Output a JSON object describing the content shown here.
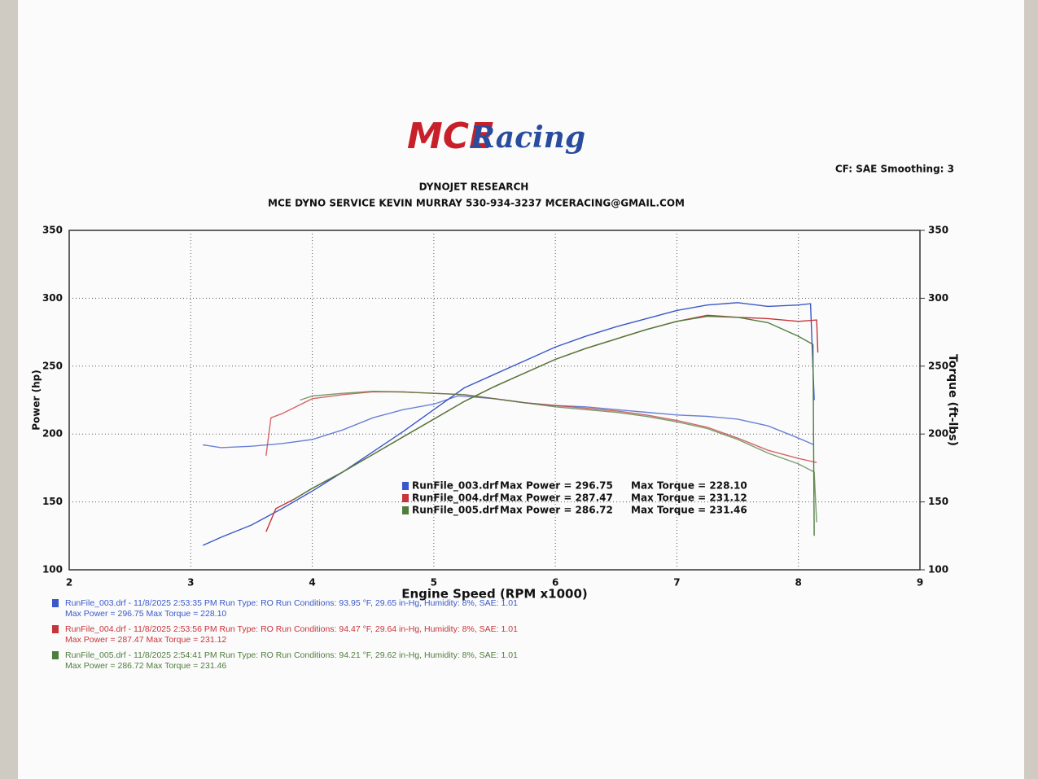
{
  "header": {
    "logo_main": "MCE",
    "logo_script": "Racing",
    "settings": "CF: SAE  Smoothing: 3",
    "company": "DYNOJET RESEARCH",
    "contact": "MCE DYNO SERVICE KEVIN MURRAY 530-934-3237 MCERACING@GMAIL.COM"
  },
  "chart_data": {
    "type": "line",
    "xlabel": "Engine Speed (RPM x1000)",
    "ylabel": "Power (hp)",
    "y2label": "Torque (ft-lbs)",
    "xlim": [
      2,
      9
    ],
    "xticks": [
      2,
      3,
      4,
      5,
      6,
      7,
      8,
      9
    ],
    "ylim": [
      100,
      350
    ],
    "yticks": [
      100,
      150,
      200,
      250,
      300,
      350
    ],
    "y2lim": [
      100,
      350
    ],
    "y2ticks": [
      100,
      150,
      200,
      250,
      300,
      350
    ],
    "grid": true,
    "series": [
      {
        "name": "RunFile_003.drf",
        "color": "#3a58c8",
        "legend": [
          "Max Power = 296.75",
          "Max Torque = 228.10"
        ],
        "power": {
          "x": [
            3.1,
            3.25,
            3.5,
            3.75,
            4,
            4.25,
            4.5,
            4.75,
            5,
            5.25,
            5.5,
            5.75,
            6,
            6.25,
            6.5,
            6.75,
            7,
            7.25,
            7.5,
            7.75,
            8,
            8.1,
            8.13
          ],
          "values": [
            118,
            124,
            133,
            145,
            158,
            172,
            187,
            202,
            218,
            234,
            244,
            254,
            264,
            272,
            279,
            285,
            291,
            295,
            296.75,
            294,
            295,
            296,
            225
          ]
        },
        "torque": {
          "x": [
            3.1,
            3.25,
            3.5,
            3.75,
            4,
            4.25,
            4.5,
            4.75,
            5,
            5.2,
            5.5,
            5.75,
            6,
            6.25,
            6.5,
            6.75,
            7,
            7.25,
            7.5,
            7.75,
            8,
            8.13
          ],
          "values": [
            192,
            190,
            191,
            193,
            196,
            203,
            212,
            218,
            222,
            228.1,
            226,
            223,
            221,
            220,
            218,
            216,
            214,
            213,
            211,
            206,
            197,
            192
          ],
          "axis": "y2"
        }
      },
      {
        "name": "RunFile_004.drf",
        "color": "#c8343a",
        "legend": [
          "Max Power = 287.47",
          "Max Torque = 231.12"
        ],
        "power": {
          "x": [
            3.62,
            3.7,
            3.85,
            4,
            4.25,
            4.5,
            4.75,
            5,
            5.25,
            5.5,
            5.75,
            6,
            6.25,
            6.5,
            6.75,
            7,
            7.25,
            7.5,
            7.75,
            8,
            8.15,
            8.16
          ],
          "values": [
            128,
            145,
            152,
            160,
            172,
            185,
            198,
            211,
            224,
            235,
            245,
            255,
            263,
            270,
            277,
            283,
            287.47,
            286,
            285,
            283,
            284,
            260
          ]
        },
        "torque": {
          "x": [
            3.62,
            3.66,
            3.75,
            4,
            4.25,
            4.5,
            4.75,
            5,
            5.25,
            5.5,
            5.75,
            6,
            6.25,
            6.5,
            6.75,
            7,
            7.25,
            7.5,
            7.75,
            8,
            8.15
          ],
          "values": [
            184,
            212,
            215,
            226,
            229,
            231.12,
            231,
            230,
            229,
            226,
            223,
            221,
            219,
            217,
            214,
            210,
            205,
            197,
            188,
            182,
            179
          ],
          "axis": "y2"
        }
      },
      {
        "name": "RunFile_005.drf",
        "color": "#4f7d3c",
        "legend": [
          "Max Power = 286.72",
          "Max Torque = 231.46"
        ],
        "power": {
          "x": [
            3.85,
            4,
            4.25,
            4.5,
            4.75,
            5,
            5.25,
            5.5,
            5.75,
            6,
            6.25,
            6.5,
            6.75,
            7,
            7.25,
            7.5,
            7.75,
            8,
            8.12,
            8.13
          ],
          "values": [
            152,
            160,
            172,
            185,
            198,
            211,
            224,
            235,
            245,
            255,
            263,
            270,
            277,
            283,
            286.72,
            286,
            282,
            272,
            266,
            125
          ]
        },
        "torque": {
          "x": [
            3.9,
            4,
            4.25,
            4.5,
            4.75,
            5,
            5.25,
            5.5,
            5.75,
            6,
            6.25,
            6.5,
            6.75,
            7,
            7.25,
            7.5,
            7.75,
            8,
            8.13,
            8.15
          ],
          "values": [
            225,
            228,
            230,
            231.46,
            231,
            230,
            229,
            226,
            223,
            220,
            218,
            216,
            213,
            209,
            204,
            196,
            186,
            178,
            172,
            135
          ],
          "axis": "y2"
        }
      }
    ]
  },
  "footer": [
    {
      "line1": "RunFile_003.drf - 11/8/2025 2:53:35 PM  Run Type: RO  Run Conditions: 93.95 °F, 29.65 in-Hg,  Humidity:  8%, SAE: 1.01",
      "line2": "Max Power = 296.75  Max Torque = 228.10"
    },
    {
      "line1": "RunFile_004.drf - 11/8/2025 2:53:56 PM  Run Type: RO  Run Conditions: 94.47 °F, 29.64 in-Hg,  Humidity:  8%, SAE: 1.01",
      "line2": "Max Power = 287.47  Max Torque = 231.12"
    },
    {
      "line1": "RunFile_005.drf - 11/8/2025 2:54:41 PM  Run Type: RO  Run Conditions: 94.21 °F, 29.62 in-Hg,  Humidity:  8%, SAE: 1.01",
      "line2": "Max Power = 286.72  Max Torque = 231.46"
    }
  ]
}
